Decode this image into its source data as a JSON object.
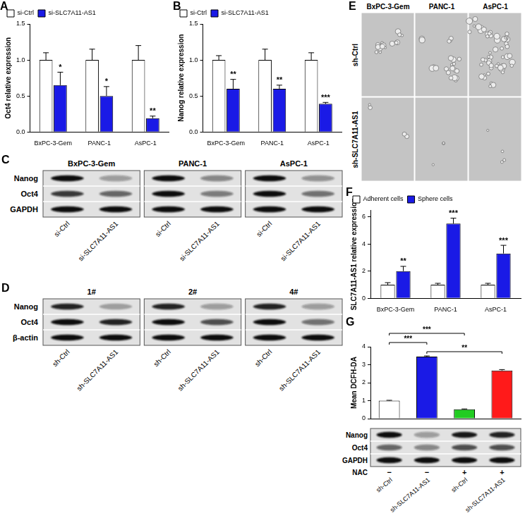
{
  "chart_data": [
    {
      "panel": "A",
      "type": "bar",
      "y_label": "Oct4 relative expression",
      "categories": [
        "BxPC-3-Gem",
        "PANC-1",
        "AsPC-1"
      ],
      "series": [
        {
          "name": "si-Ctrl",
          "color": "#ffffff",
          "values": [
            1,
            1,
            1
          ],
          "errors": [
            0.1,
            0.15,
            0.2
          ]
        },
        {
          "name": "si-SLC7A11-AS1",
          "color": "#1a1ae6",
          "values": [
            0.65,
            0.5,
            0.19
          ],
          "errors": [
            0.18,
            0.13,
            0.03
          ],
          "significance": [
            "*",
            "*",
            "**"
          ]
        }
      ],
      "ylim": [
        0,
        1.5
      ],
      "yticks": [
        {
          "value": 0,
          "label": "0.0"
        },
        {
          "value": 0.5,
          "label": "0.5"
        },
        {
          "value": 1,
          "label": "1.0"
        },
        {
          "value": 1.5,
          "label": "1.5"
        }
      ],
      "grid": false,
      "legend": "upper left"
    },
    {
      "panel": "B",
      "type": "bar",
      "y_label": "Nanog relative expression",
      "categories": [
        "BxPC-3-Gem",
        "PANC-1",
        "AsPC-1"
      ],
      "series": [
        {
          "name": "si-Ctrl",
          "color": "#ffffff",
          "values": [
            1,
            1,
            1
          ],
          "errors": [
            0.06,
            0.15,
            0.1
          ]
        },
        {
          "name": "si-SLC7A11-AS1",
          "color": "#1a1ae6",
          "values": [
            0.6,
            0.6,
            0.39
          ],
          "errors": [
            0.13,
            0.05,
            0.02
          ],
          "significance": [
            "**",
            "**",
            "***"
          ]
        }
      ],
      "ylim": [
        0,
        1.5
      ],
      "yticks": [
        {
          "value": 0,
          "label": "0.0"
        },
        {
          "value": 0.5,
          "label": "0.5"
        },
        {
          "value": 1,
          "label": "1.0"
        },
        {
          "value": 1.5,
          "label": "1.5"
        }
      ],
      "grid": false,
      "legend": "upper left"
    },
    {
      "panel": "F",
      "type": "bar",
      "y_label": "SLC7A11-AS1 relative expression",
      "categories": [
        "BxPC-3-Gem",
        "PANC-1",
        "AsPC-1"
      ],
      "series": [
        {
          "name": "Adherent cells",
          "color": "#ffffff",
          "values": [
            1,
            1,
            1
          ],
          "errors": [
            0.15,
            0.1,
            0.1
          ]
        },
        {
          "name": "Sphere cells",
          "color": "#1a1ae6",
          "values": [
            2.0,
            5.5,
            3.3
          ],
          "errors": [
            0.35,
            0.4,
            0.6
          ],
          "significance": [
            "**",
            "***",
            "***"
          ]
        }
      ],
      "ylim": [
        0,
        6.5
      ],
      "yticks": [
        0,
        2,
        4,
        6
      ],
      "grid": false,
      "legend": "upper left"
    },
    {
      "panel": "G",
      "type": "bar",
      "y_label": "Mean DCFH-DA",
      "categories": [
        "sh-Ctrl",
        "sh-SLC7A11-AS1",
        "sh-Ctrl",
        "sh-SLC7A11-AS1"
      ],
      "values": [
        1,
        3.45,
        0.52,
        2.68
      ],
      "errors": [
        0.02,
        0.04,
        0.02,
        0.05
      ],
      "colors": [
        "#ffffff",
        "#1a1ae6",
        "#22cc22",
        "#ff1a1a"
      ],
      "comparisons": [
        {
          "pair": [
            1,
            3
          ],
          "label": "**"
        },
        {
          "pair": [
            0,
            1
          ],
          "label": "***"
        },
        {
          "pair": [
            0,
            2
          ],
          "label": "***"
        }
      ],
      "ylim": [
        0,
        4
      ],
      "yticks": [
        0,
        1,
        2,
        3,
        4
      ],
      "grid": false,
      "tick_labels": "y"
    }
  ],
  "blots": [
    {
      "panel": "C",
      "groups": [
        "BxPC-3-Gem",
        "PANC-1",
        "AsPC-1"
      ],
      "lanes": [
        "si-Ctrl",
        "si-SLC7A11-AS1"
      ],
      "rows": [
        {
          "label": "Nanog",
          "intensity": [
            [
              1,
              0.35
            ],
            [
              1,
              0.45
            ],
            [
              1,
              0.4
            ]
          ]
        },
        {
          "label": "Oct4",
          "intensity": [
            [
              0.8,
              0.6
            ],
            [
              1,
              0.5
            ],
            [
              1,
              0.55
            ]
          ]
        },
        {
          "label": "GAPDH",
          "intensity": [
            [
              1,
              1
            ],
            [
              1,
              1
            ],
            [
              1,
              1
            ]
          ]
        }
      ]
    },
    {
      "panel": "D",
      "groups": [
        "1#",
        "2#",
        "4#"
      ],
      "lanes": [
        "sh-Ctrl",
        "sh-SLC7A11-AS1"
      ],
      "rows": [
        {
          "label": "Nanog",
          "intensity": [
            [
              0.9,
              0.3
            ],
            [
              0.9,
              0.35
            ],
            [
              0.9,
              0.35
            ]
          ]
        },
        {
          "label": "Oct4",
          "intensity": [
            [
              1,
              0.9
            ],
            [
              1,
              0.7
            ],
            [
              1,
              0.55
            ]
          ]
        },
        {
          "label": "β-actin",
          "intensity": [
            [
              1,
              1
            ],
            [
              1,
              1
            ],
            [
              1,
              1
            ]
          ]
        }
      ]
    },
    {
      "rows": [
        {
          "label": "Nanog",
          "intensity": [
            1,
            0.35,
            0.95,
            0.9
          ]
        },
        {
          "label": "Oct4",
          "intensity": [
            0.6,
            0.45,
            0.7,
            0.7
          ]
        },
        {
          "label": "GAPDH",
          "intensity": [
            1,
            1,
            1,
            1
          ]
        }
      ],
      "treatment": {
        "label": "NAC",
        "values": [
          "−",
          "−",
          "+",
          "+"
        ]
      }
    }
  ],
  "images": {
    "panel": "E",
    "columns": [
      "BxPC-3-Gem",
      "PANC-1",
      "AsPC-1"
    ],
    "rows": [
      "sh-Ctrl",
      "sh-SLC7A11-AS1"
    ]
  }
}
